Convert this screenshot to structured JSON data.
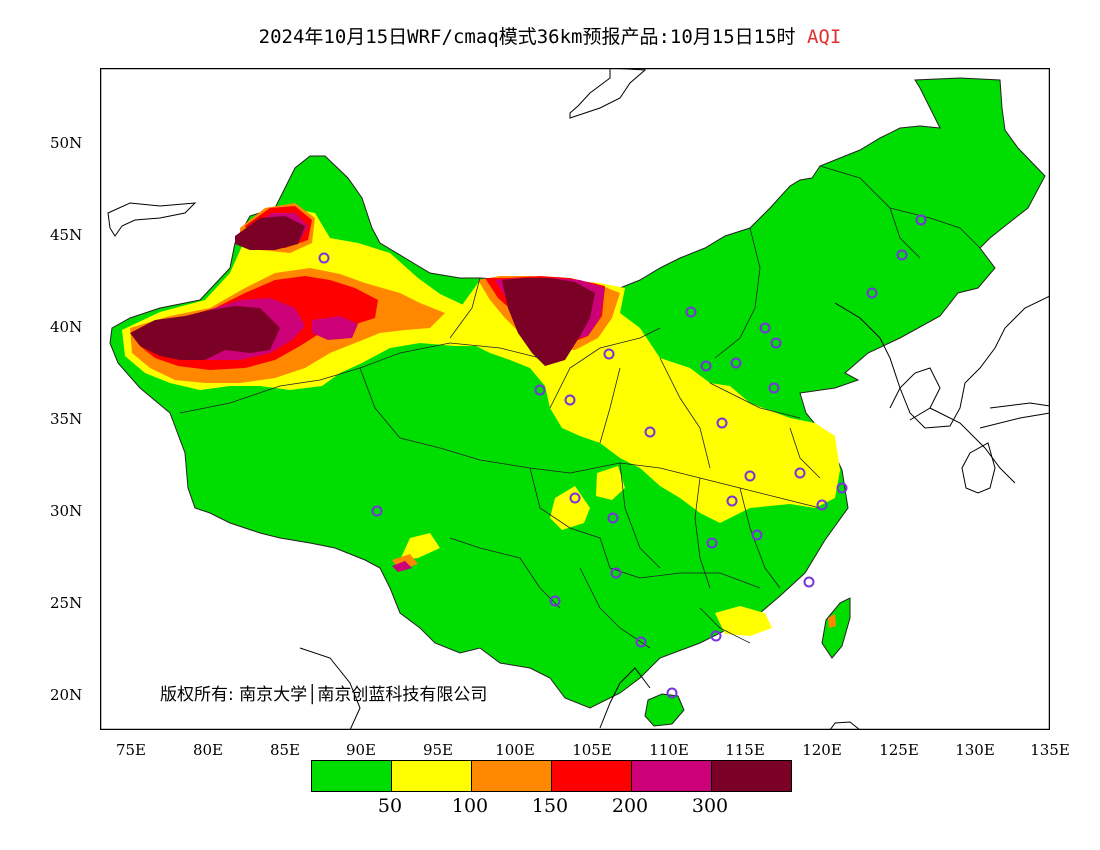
{
  "title": "2024年10月15日WRF/cmaq模式36km预报产品:10月15日15时",
  "title_variable": "AQI",
  "y_ticks": [
    "50N",
    "45N",
    "40N",
    "35N",
    "30N",
    "25N",
    "20N"
  ],
  "x_ticks": [
    "75E",
    "80E",
    "85E",
    "90E",
    "95E",
    "100E",
    "105E",
    "110E",
    "115E",
    "120E",
    "125E",
    "130E",
    "135E"
  ],
  "legend": {
    "colors": [
      "#00dd00",
      "#ffff00",
      "#ff8800",
      "#ff0000",
      "#cc0077",
      "#7a0025"
    ],
    "values": [
      "50",
      "100",
      "150",
      "200",
      "300"
    ]
  },
  "copyright": "版权所有: 南京大学│南京创蓝科技有限公司",
  "station_marker_color": "#7733dd"
}
